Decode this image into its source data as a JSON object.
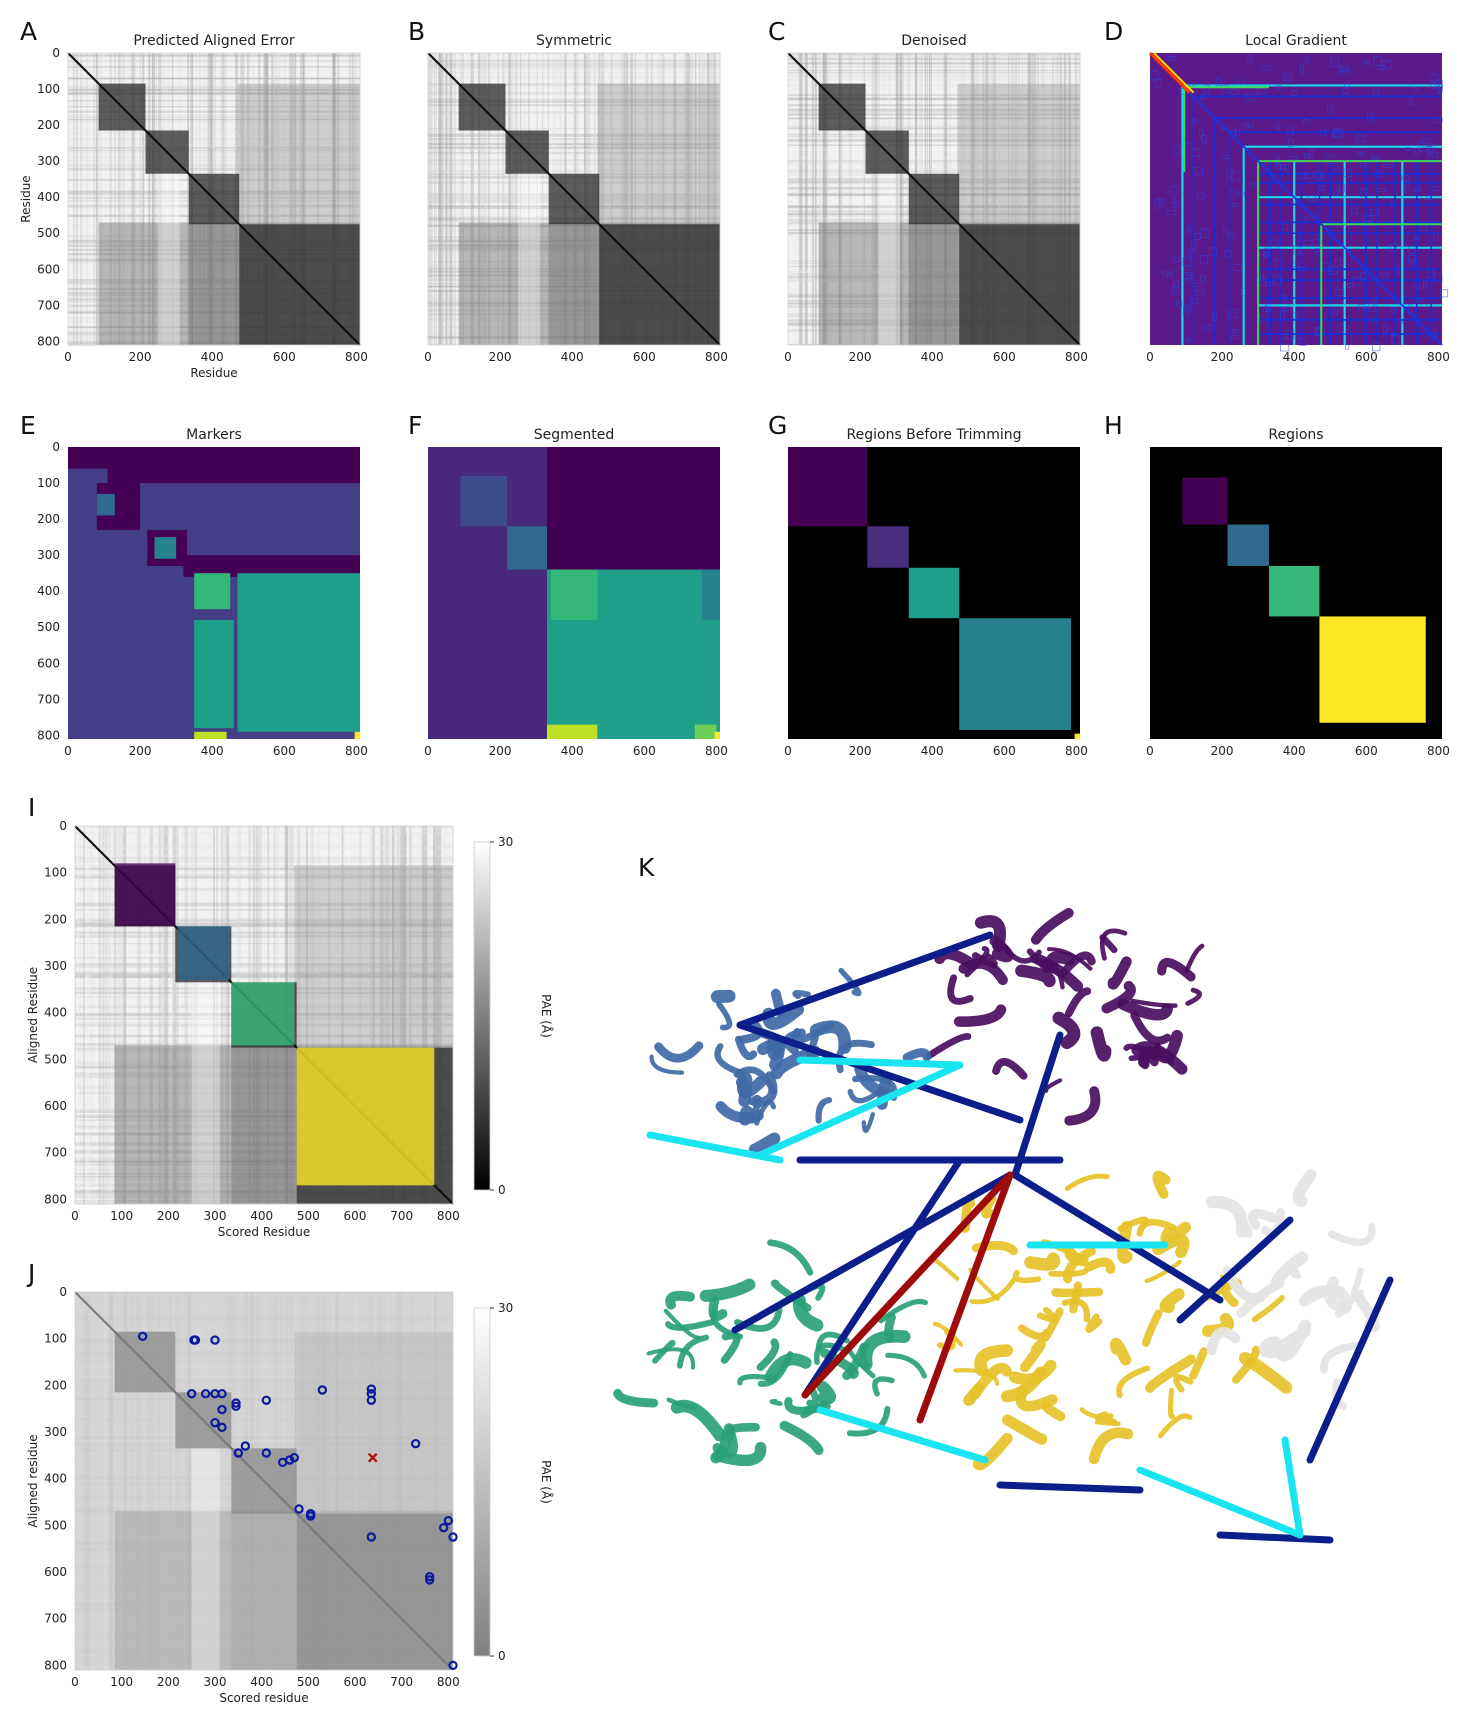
{
  "chart_data": [
    {
      "id": "A",
      "type": "heatmap",
      "panel_label": "A",
      "title": "Predicted Aligned Error",
      "xlabel": "Residue",
      "ylabel": "Residue",
      "xticks": [
        "0",
        "200",
        "400",
        "600",
        "800"
      ],
      "yticks": [
        "0",
        "100",
        "200",
        "300",
        "400",
        "500",
        "600",
        "700",
        "800"
      ],
      "xlim": [
        0,
        810
      ],
      "ylim": [
        0,
        810
      ],
      "style": "pae"
    },
    {
      "id": "B",
      "type": "heatmap",
      "panel_label": "B",
      "title": "Symmetric",
      "xticks": [
        "0",
        "200",
        "400",
        "600",
        "800"
      ],
      "xlim": [
        0,
        810
      ],
      "ylim": [
        0,
        810
      ],
      "style": "pae"
    },
    {
      "id": "C",
      "type": "heatmap",
      "panel_label": "C",
      "title": "Denoised",
      "xticks": [
        "0",
        "200",
        "400",
        "600",
        "800"
      ],
      "xlim": [
        0,
        810
      ],
      "ylim": [
        0,
        810
      ],
      "style": "pae"
    },
    {
      "id": "D",
      "type": "heatmap",
      "panel_label": "D",
      "title": "Local Gradient",
      "xticks": [
        "0",
        "200",
        "400",
        "600",
        "800"
      ],
      "xlim": [
        0,
        810
      ],
      "ylim": [
        0,
        810
      ],
      "style": "gradient"
    },
    {
      "id": "E",
      "type": "heatmap",
      "panel_label": "E",
      "title": "Markers",
      "xticks": [
        "0",
        "200",
        "400",
        "600",
        "800"
      ],
      "yticks": [
        "0",
        "100",
        "200",
        "300",
        "400",
        "500",
        "600",
        "700",
        "800"
      ],
      "xlim": [
        0,
        810
      ],
      "ylim": [
        0,
        810
      ],
      "style": "segments",
      "background": "#433e85",
      "regions": [
        {
          "x0": 0,
          "x1": 810,
          "y0": 0,
          "y1": 60,
          "color": "#440154"
        },
        {
          "x0": 110,
          "x1": 810,
          "y0": 0,
          "y1": 100,
          "color": "#440154"
        },
        {
          "x0": 80,
          "x1": 200,
          "y0": 100,
          "y1": 230,
          "color": "#440154"
        },
        {
          "x0": 220,
          "x1": 330,
          "y0": 230,
          "y1": 330,
          "color": "#440154"
        },
        {
          "x0": 320,
          "x1": 810,
          "y0": 300,
          "y1": 360,
          "color": "#440154"
        },
        {
          "x0": 80,
          "x1": 130,
          "y0": 130,
          "y1": 190,
          "color": "#31688e"
        },
        {
          "x0": 240,
          "x1": 300,
          "y0": 250,
          "y1": 310,
          "color": "#26828e"
        },
        {
          "x0": 350,
          "x1": 450,
          "y0": 350,
          "y1": 450,
          "color": "#35b779"
        },
        {
          "x0": 470,
          "x1": 810,
          "y0": 350,
          "y1": 790,
          "color": "#1f9e89"
        },
        {
          "x0": 350,
          "x1": 460,
          "y0": 480,
          "y1": 780,
          "color": "#1f9e89"
        },
        {
          "x0": 350,
          "x1": 440,
          "y0": 790,
          "y1": 810,
          "color": "#bddf26"
        },
        {
          "x0": 795,
          "x1": 810,
          "y0": 790,
          "y1": 810,
          "color": "#fde725"
        }
      ]
    },
    {
      "id": "F",
      "type": "heatmap",
      "panel_label": "F",
      "title": "Segmented",
      "xticks": [
        "0",
        "200",
        "400",
        "600",
        "800"
      ],
      "xlim": [
        0,
        810
      ],
      "ylim": [
        0,
        810
      ],
      "style": "segments",
      "background": "#482878",
      "regions": [
        {
          "x0": 0,
          "x1": 810,
          "y0": 0,
          "y1": 340,
          "color": "#440154"
        },
        {
          "x0": 0,
          "x1": 330,
          "y0": 0,
          "y1": 810,
          "color": "#482878"
        },
        {
          "x0": 90,
          "x1": 220,
          "y0": 80,
          "y1": 220,
          "color": "#3e4a89"
        },
        {
          "x0": 220,
          "x1": 330,
          "y0": 220,
          "y1": 340,
          "color": "#31688e"
        },
        {
          "x0": 330,
          "x1": 810,
          "y0": 340,
          "y1": 810,
          "color": "#1f9e89"
        },
        {
          "x0": 340,
          "x1": 470,
          "y0": 340,
          "y1": 480,
          "color": "#35b779"
        },
        {
          "x0": 760,
          "x1": 810,
          "y0": 340,
          "y1": 480,
          "color": "#26828e"
        },
        {
          "x0": 330,
          "x1": 470,
          "y0": 770,
          "y1": 810,
          "color": "#bddf26"
        },
        {
          "x0": 740,
          "x1": 800,
          "y0": 770,
          "y1": 810,
          "color": "#6ece58"
        },
        {
          "x0": 795,
          "x1": 810,
          "y0": 790,
          "y1": 810,
          "color": "#fde725"
        }
      ]
    },
    {
      "id": "G",
      "type": "heatmap",
      "panel_label": "G",
      "title": "Regions Before Trimming",
      "xticks": [
        "0",
        "200",
        "400",
        "600",
        "800"
      ],
      "xlim": [
        0,
        810
      ],
      "ylim": [
        0,
        810
      ],
      "style": "segments",
      "background": "#000000",
      "regions": [
        {
          "x0": 0,
          "x1": 220,
          "y0": 0,
          "y1": 220,
          "color": "#440154"
        },
        {
          "x0": 220,
          "x1": 335,
          "y0": 220,
          "y1": 335,
          "color": "#472f7d"
        },
        {
          "x0": 335,
          "x1": 475,
          "y0": 335,
          "y1": 475,
          "color": "#1f9e89"
        },
        {
          "x0": 475,
          "x1": 785,
          "y0": 475,
          "y1": 785,
          "color": "#26828e"
        },
        {
          "x0": 795,
          "x1": 810,
          "y0": 795,
          "y1": 810,
          "color": "#fde725"
        }
      ]
    },
    {
      "id": "H",
      "type": "heatmap",
      "panel_label": "H",
      "title": "Regions",
      "xticks": [
        "0",
        "200",
        "400",
        "600",
        "800"
      ],
      "xlim": [
        0,
        810
      ],
      "ylim": [
        0,
        810
      ],
      "style": "segments",
      "background": "#000000",
      "regions": [
        {
          "x0": 90,
          "x1": 215,
          "y0": 85,
          "y1": 215,
          "color": "#440154"
        },
        {
          "x0": 215,
          "x1": 330,
          "y0": 215,
          "y1": 330,
          "color": "#31688e"
        },
        {
          "x0": 330,
          "x1": 470,
          "y0": 330,
          "y1": 470,
          "color": "#35b779"
        },
        {
          "x0": 470,
          "x1": 765,
          "y0": 470,
          "y1": 765,
          "color": "#fde725"
        }
      ]
    },
    {
      "id": "I",
      "type": "heatmap",
      "panel_label": "I",
      "xlabel": "Scored Residue",
      "ylabel": "Aligned Residue",
      "xticks": [
        "0",
        "100",
        "200",
        "300",
        "400",
        "500",
        "600",
        "700",
        "800"
      ],
      "yticks": [
        "0",
        "100",
        "200",
        "300",
        "400",
        "500",
        "600",
        "700",
        "800"
      ],
      "xlim": [
        0,
        810
      ],
      "ylim": [
        0,
        810
      ],
      "style": "pae",
      "colorbar": {
        "label": "PAE (Å)",
        "ticks": [
          "0",
          "30"
        ],
        "range": [
          0,
          30
        ]
      },
      "overlays": [
        {
          "x0": 85,
          "x1": 215,
          "y0": 80,
          "y1": 215,
          "color": "#440154"
        },
        {
          "x0": 220,
          "x1": 330,
          "y0": 215,
          "y1": 330,
          "color": "#31688e"
        },
        {
          "x0": 335,
          "x1": 470,
          "y0": 335,
          "y1": 470,
          "color": "#35b779"
        },
        {
          "x0": 475,
          "x1": 770,
          "y0": 475,
          "y1": 770,
          "color": "#fde725"
        }
      ]
    },
    {
      "id": "J",
      "type": "scatter",
      "panel_label": "J",
      "xlabel": "Scored residue",
      "ylabel": "Aligned residue",
      "xticks": [
        "0",
        "100",
        "200",
        "300",
        "400",
        "500",
        "600",
        "700",
        "800"
      ],
      "yticks": [
        "0",
        "100",
        "200",
        "300",
        "400",
        "500",
        "600",
        "700",
        "800"
      ],
      "xlim": [
        0,
        810
      ],
      "ylim": [
        0,
        810
      ],
      "style": "pae-faded",
      "colorbar": {
        "label": "PAE (Å)",
        "ticks": [
          "0",
          "30"
        ],
        "range": [
          0,
          30
        ]
      },
      "points": [
        [
          145,
          95
        ],
        [
          255,
          103
        ],
        [
          300,
          103
        ],
        [
          258,
          103
        ],
        [
          300,
          218
        ],
        [
          250,
          218
        ],
        [
          280,
          218
        ],
        [
          315,
          218
        ],
        [
          315,
          252
        ],
        [
          345,
          238
        ],
        [
          410,
          232
        ],
        [
          345,
          245
        ],
        [
          300,
          280
        ],
        [
          315,
          290
        ],
        [
          350,
          345
        ],
        [
          365,
          330
        ],
        [
          410,
          345
        ],
        [
          445,
          365
        ],
        [
          460,
          360
        ],
        [
          470,
          355
        ],
        [
          530,
          210
        ],
        [
          635,
          208
        ],
        [
          635,
          218
        ],
        [
          635,
          232
        ],
        [
          635,
          525
        ],
        [
          480,
          465
        ],
        [
          505,
          475
        ],
        [
          505,
          480
        ],
        [
          760,
          610
        ],
        [
          760,
          617
        ],
        [
          790,
          505
        ],
        [
          800,
          490
        ],
        [
          810,
          525
        ],
        [
          810,
          800
        ],
        [
          730,
          325
        ]
      ],
      "marker": {
        "x": 638,
        "y": 355
      }
    },
    {
      "id": "K",
      "type": "other",
      "panel_label": "K",
      "description_free": true
    }
  ]
}
